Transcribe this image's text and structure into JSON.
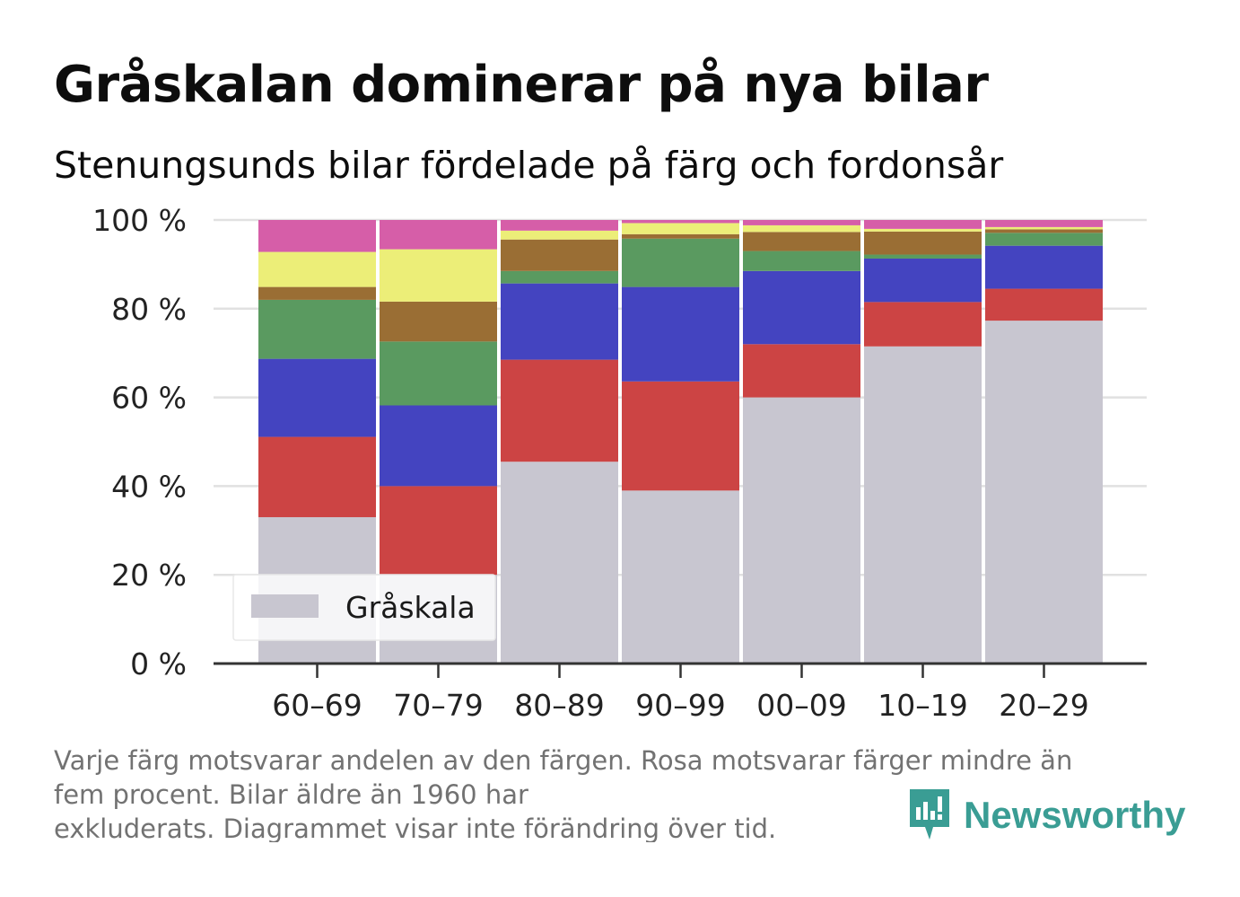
{
  "title": "Gråskalan dominerar på nya bilar",
  "subtitle": "Stenungsunds bilar fördelade på färg och fordonsår",
  "footnote": {
    "lines": [
      "Varje färg motsvarar andelen av den färgen. Rosa motsvarar färger mindre än",
      "fem procent. Bilar äldre än 1960 har",
      "exkluderats. Diagrammet visar inte förändring över tid."
    ]
  },
  "brand": {
    "name": "Newsworthy",
    "icon": "newsworthy-logo-icon",
    "color": "#3a9d94"
  },
  "chart_data": {
    "type": "bar",
    "stacked": true,
    "title": "Gråskalan dominerar på nya bilar",
    "subtitle": "Stenungsunds bilar fördelade på färg och fordonsår",
    "xlabel": "",
    "ylabel": "",
    "categories": [
      "60–69",
      "70–79",
      "80–89",
      "90–99",
      "00–09",
      "10–19",
      "20–29"
    ],
    "ylim": [
      0,
      100
    ],
    "yticks": [
      0,
      20,
      40,
      60,
      80,
      100
    ],
    "ytick_labels": [
      "0 %",
      "20 %",
      "40 %",
      "60 %",
      "80 %",
      "100 %"
    ],
    "grid": "horizontal",
    "series": [
      {
        "name": "Gråskala",
        "color": "#c8c6d0",
        "values": [
          33,
          20,
          45.5,
          39,
          60,
          71.5,
          77.3
        ]
      },
      {
        "color": "#cc4444",
        "values": [
          18.1,
          20,
          23,
          24.6,
          12,
          10,
          7.2
        ]
      },
      {
        "color": "#4444c0",
        "values": [
          17.6,
          18.2,
          17.2,
          21.3,
          16.5,
          9.8,
          9.7
        ]
      },
      {
        "color": "#5a9a60",
        "values": [
          13.3,
          14.4,
          2.8,
          10.9,
          4.5,
          0.9,
          2.9
        ]
      },
      {
        "color": "#9a6e34",
        "values": [
          2.9,
          9,
          7.1,
          1,
          4.3,
          5.2,
          0.8
        ]
      },
      {
        "color": "#ecee78",
        "values": [
          7.9,
          11.8,
          2,
          2.5,
          1.5,
          0.6,
          0.5
        ]
      },
      {
        "color": "#d65ea8",
        "values": [
          7.2,
          6.6,
          2.4,
          0.7,
          1.2,
          2,
          1.6
        ]
      }
    ],
    "legend": {
      "position": "bottom-left",
      "entries": [
        "Gråskala"
      ]
    }
  }
}
